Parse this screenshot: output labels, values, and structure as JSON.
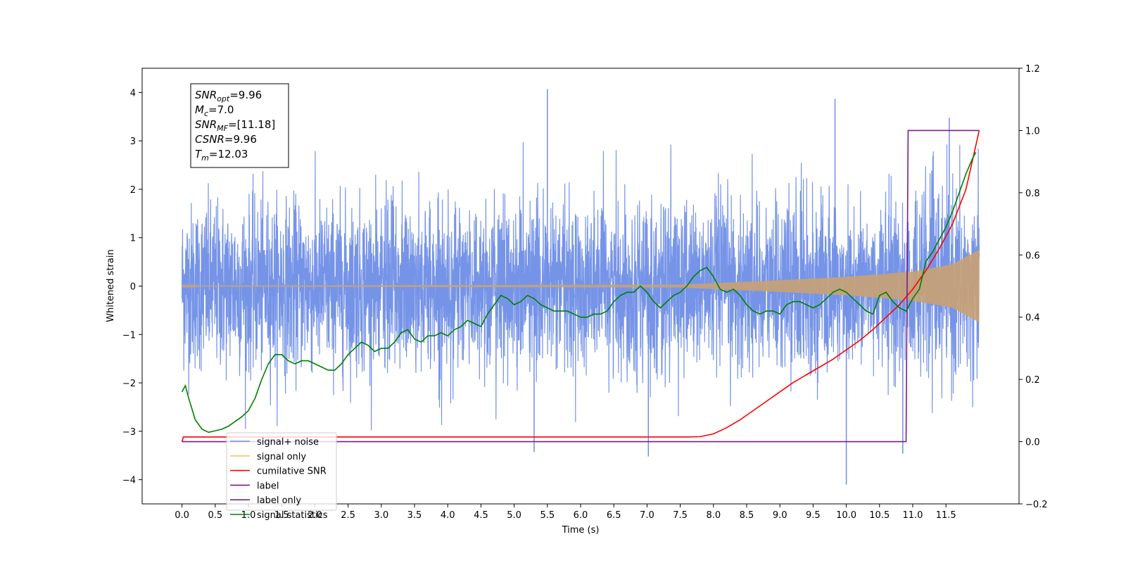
{
  "chart_data": {
    "type": "line",
    "xlabel": "Time (s)",
    "ylabel_left": "Whitened strain",
    "ylabel_right": "",
    "xlim": [
      -0.6,
      12.6
    ],
    "ylim_left": [
      -4.5,
      4.5
    ],
    "ylim_right": [
      -0.2,
      1.2
    ],
    "x_ticks": [
      "0.0",
      "0.5",
      "1.0",
      "1.5",
      "2.0",
      "2.5",
      "3.0",
      "3.5",
      "4.0",
      "4.5",
      "5.0",
      "5.5",
      "6.0",
      "6.5",
      "7.0",
      "7.5",
      "8.0",
      "8.5",
      "9.0",
      "9.5",
      "10.0",
      "10.5",
      "11.0",
      "11.5"
    ],
    "y_ticks_left": [
      "4",
      "3",
      "2",
      "1",
      "0",
      "−1",
      "−2",
      "−3",
      "−4"
    ],
    "y_ticks_right": [
      "1.2",
      "1.0",
      "0.8",
      "0.6",
      "0.4",
      "0.2",
      "0.0",
      "−0.2"
    ],
    "grid": false,
    "legend_position": "bottom-left",
    "annotation": {
      "lines": [
        {
          "sym": "SNR",
          "sub": "opt",
          "rest": "=9.96"
        },
        {
          "sym": "M",
          "sub": "c",
          "rest": "=7.0"
        },
        {
          "sym": "SNR",
          "sub": "MF",
          "rest": "=[11.18]"
        },
        {
          "sym": "CSNR",
          "sub": "",
          "rest": "=9.96"
        },
        {
          "sym": "T",
          "sub": "m",
          "rest": "=12.03"
        }
      ]
    },
    "series": [
      {
        "name": "signal+ noise",
        "axis": "left",
        "color": "#6f8ee6",
        "description_t_range": [
          0.0,
          12.0
        ],
        "noise_std": 0.85,
        "peaks": [
          [
            5.5,
            4.07
          ],
          [
            9.83,
            3.87
          ],
          [
            11.55,
            3.48
          ],
          [
            10.0,
            -4.1
          ],
          [
            7.02,
            -3.52
          ],
          [
            10.85,
            -3.46
          ],
          [
            5.3,
            -3.43
          ]
        ]
      },
      {
        "name": "signal only",
        "axis": "left",
        "color": "#c9a173",
        "amplitude_envelope": [
          [
            0.0,
            0.01
          ],
          [
            7.5,
            0.03
          ],
          [
            8.0,
            0.06
          ],
          [
            9.0,
            0.12
          ],
          [
            10.0,
            0.19
          ],
          [
            11.0,
            0.3
          ],
          [
            11.6,
            0.45
          ],
          [
            12.0,
            0.75
          ]
        ]
      },
      {
        "name": "cumilative SNR",
        "axis": "right",
        "color": "#ff0000",
        "x": [
          0.0,
          0.02,
          7.6,
          7.8,
          8.0,
          8.2,
          8.4,
          8.6,
          8.8,
          9.0,
          9.2,
          9.4,
          9.6,
          9.8,
          10.0,
          10.2,
          10.4,
          10.6,
          10.8,
          11.0,
          11.2,
          11.4,
          11.6,
          11.8,
          12.0
        ],
        "y": [
          0.0,
          0.015,
          0.015,
          0.016,
          0.025,
          0.045,
          0.07,
          0.1,
          0.13,
          0.16,
          0.19,
          0.215,
          0.24,
          0.265,
          0.295,
          0.325,
          0.36,
          0.4,
          0.44,
          0.49,
          0.55,
          0.62,
          0.7,
          0.81,
          1.0
        ]
      },
      {
        "name": "label",
        "axis": "right",
        "color": "#7b1c8e",
        "x": [
          0.0,
          10.9,
          10.93,
          12.0
        ],
        "y": [
          0.0,
          0.0,
          1.0,
          1.0
        ]
      },
      {
        "name": "label only",
        "axis": "right",
        "color": "#7b1c8e"
      },
      {
        "name": "signal statistics",
        "axis": "right",
        "color": "#008000",
        "x": [
          0.0,
          0.05,
          0.1,
          0.2,
          0.3,
          0.4,
          0.5,
          0.6,
          0.7,
          0.8,
          0.9,
          1.0,
          1.1,
          1.2,
          1.3,
          1.4,
          1.5,
          1.6,
          1.7,
          1.8,
          1.9,
          2.0,
          2.1,
          2.2,
          2.3,
          2.4,
          2.5,
          2.6,
          2.7,
          2.8,
          2.9,
          3.0,
          3.1,
          3.2,
          3.3,
          3.4,
          3.5,
          3.6,
          3.7,
          3.8,
          3.9,
          4.0,
          4.1,
          4.2,
          4.3,
          4.4,
          4.5,
          4.6,
          4.7,
          4.8,
          4.9,
          5.0,
          5.1,
          5.2,
          5.3,
          5.4,
          5.5,
          5.6,
          5.7,
          5.8,
          5.9,
          6.0,
          6.1,
          6.2,
          6.3,
          6.4,
          6.5,
          6.6,
          6.7,
          6.8,
          6.9,
          7.0,
          7.1,
          7.2,
          7.3,
          7.4,
          7.5,
          7.6,
          7.7,
          7.8,
          7.9,
          8.0,
          8.1,
          8.2,
          8.3,
          8.4,
          8.5,
          8.6,
          8.7,
          8.8,
          8.9,
          9.0,
          9.1,
          9.2,
          9.3,
          9.4,
          9.5,
          9.6,
          9.7,
          9.8,
          9.9,
          10.0,
          10.1,
          10.2,
          10.3,
          10.4,
          10.5,
          10.6,
          10.7,
          10.8,
          10.9,
          11.0,
          11.1,
          11.2,
          11.3,
          11.4,
          11.5,
          11.6,
          11.7,
          11.8,
          11.9,
          11.95
        ],
        "y": [
          0.16,
          0.18,
          0.14,
          0.07,
          0.04,
          0.03,
          0.035,
          0.04,
          0.05,
          0.065,
          0.08,
          0.1,
          0.14,
          0.2,
          0.25,
          0.28,
          0.28,
          0.26,
          0.25,
          0.26,
          0.26,
          0.25,
          0.24,
          0.23,
          0.23,
          0.25,
          0.28,
          0.3,
          0.32,
          0.31,
          0.29,
          0.3,
          0.3,
          0.32,
          0.35,
          0.36,
          0.33,
          0.32,
          0.34,
          0.34,
          0.35,
          0.34,
          0.36,
          0.37,
          0.39,
          0.38,
          0.37,
          0.41,
          0.44,
          0.47,
          0.46,
          0.44,
          0.45,
          0.47,
          0.46,
          0.44,
          0.43,
          0.42,
          0.42,
          0.42,
          0.41,
          0.4,
          0.4,
          0.41,
          0.41,
          0.42,
          0.45,
          0.47,
          0.48,
          0.48,
          0.5,
          0.48,
          0.45,
          0.43,
          0.45,
          0.47,
          0.48,
          0.5,
          0.53,
          0.55,
          0.56,
          0.53,
          0.49,
          0.48,
          0.49,
          0.47,
          0.44,
          0.42,
          0.41,
          0.42,
          0.42,
          0.41,
          0.44,
          0.45,
          0.45,
          0.44,
          0.43,
          0.44,
          0.46,
          0.48,
          0.49,
          0.48,
          0.46,
          0.44,
          0.42,
          0.41,
          0.47,
          0.48,
          0.45,
          0.43,
          0.42,
          0.46,
          0.49,
          0.58,
          0.61,
          0.65,
          0.69,
          0.74,
          0.8,
          0.86,
          0.91,
          0.93
        ]
      }
    ]
  }
}
